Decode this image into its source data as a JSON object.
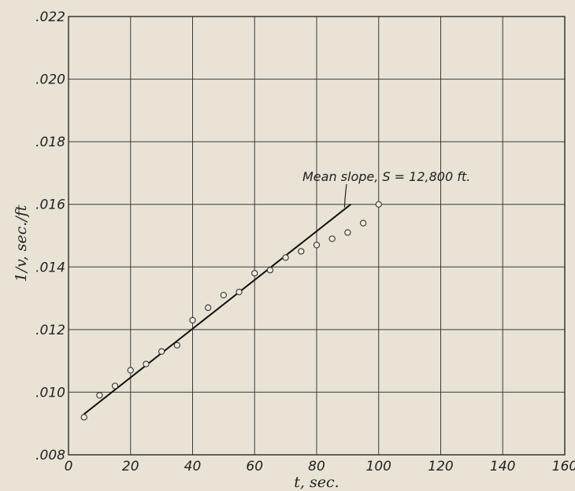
{
  "chart_data": {
    "type": "scatter",
    "title": "",
    "xlabel": "t, sec.",
    "ylabel": "1/v, sec./ft",
    "xlim": [
      0,
      160
    ],
    "ylim": [
      0.008,
      0.022
    ],
    "x_ticks": [
      0,
      20,
      40,
      60,
      80,
      100,
      120,
      140,
      160
    ],
    "x_tick_labels": [
      "0",
      "20",
      "40",
      "60",
      "80",
      "100",
      "120",
      "140",
      "160"
    ],
    "y_ticks": [
      0.008,
      0.01,
      0.012,
      0.014,
      0.016,
      0.018,
      0.02,
      0.022
    ],
    "y_tick_labels": [
      ".008",
      ".010",
      ".012",
      ".014",
      ".016",
      ".018",
      ".020",
      ".022"
    ],
    "grid": true,
    "series": [
      {
        "type": "scatter",
        "marker": "open-circle",
        "x": [
          5,
          10,
          15,
          20,
          25,
          30,
          35,
          40,
          45,
          50,
          55,
          60,
          65,
          70,
          75,
          80,
          85,
          90,
          95,
          100
        ],
        "y": [
          0.0092,
          0.0099,
          0.0102,
          0.0107,
          0.0109,
          0.0113,
          0.0115,
          0.0123,
          0.0127,
          0.0131,
          0.0132,
          0.0138,
          0.0139,
          0.0143,
          0.0145,
          0.0147,
          0.0149,
          0.0151,
          0.0154,
          0.016
        ]
      },
      {
        "type": "line",
        "x": [
          5,
          91
        ],
        "y": [
          0.0093,
          0.016
        ]
      }
    ],
    "annotations": [
      {
        "text": "Mean slope, S = 12,800 ft.",
        "points_to": {
          "x": 89,
          "y": 0.0159
        }
      }
    ]
  },
  "colors": {
    "background": "#e9e3d6",
    "ink": "#222222"
  }
}
